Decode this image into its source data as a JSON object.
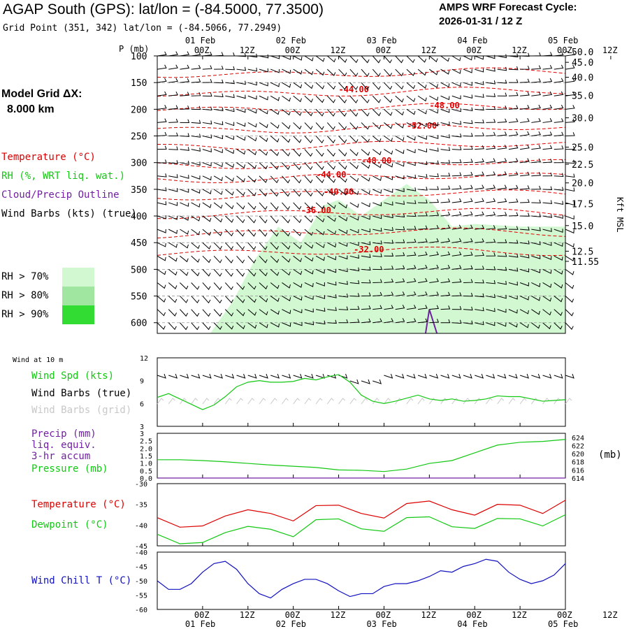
{
  "header": {
    "title": "AGAP South (GPS):  lat/lon = (-84.5000, 77.3500)",
    "grid_point": "Grid Point (351, 342) lat/lon = (-84.5066, 77.2949)",
    "cycle_label": "AMPS WRF Forecast Cycle:",
    "cycle_value": "2026-01-31 / 12  Z"
  },
  "model_grid": {
    "label": "Model Grid ΔX:",
    "value": "8.000 km"
  },
  "legend": {
    "temperature": "Temperature (°C)",
    "rh": "RH (%, WRT liq. wat.)",
    "cloud": "Cloud/Precip Outline",
    "wind_barbs": "Wind Barbs (kts) (true)",
    "rh_levels": [
      {
        "label": "RH > 70%",
        "color": "#d2f8d2"
      },
      {
        "label": "RH > 80%",
        "color": "#a0e6a0"
      },
      {
        "label": "RH > 90%",
        "color": "#32dc32"
      }
    ]
  },
  "colors": {
    "temperature": "#dd0000",
    "green": "#12c812",
    "purple": "#7020a0",
    "gray": "#c8c8c8",
    "blue": "#1010c0"
  },
  "chart_data": [
    {
      "type": "heatmap",
      "title": "Time-height cross section",
      "ylabel": "P (mb)",
      "y2label": "Kft MSL",
      "x_ticks": [
        "00Z",
        "12Z",
        "00Z",
        "12Z",
        "00Z",
        "12Z",
        "00Z",
        "12Z",
        "00Z",
        "12Z"
      ],
      "x_dates": [
        "01 Feb",
        "02 Feb",
        "03 Feb",
        "04 Feb",
        "05 Feb"
      ],
      "forecast_hours": [
        12,
        120
      ],
      "p_ticks": [
        100,
        150,
        200,
        250,
        300,
        350,
        400,
        450,
        500,
        550,
        600
      ],
      "ylim": [
        100,
        620
      ],
      "kft_ticks": [
        "50.0",
        "45.0",
        "40.0",
        "35.0",
        "30.0",
        "25.0",
        "22.5",
        "20.0",
        "17.5",
        "15.0",
        "12.5",
        "11.55"
      ],
      "kft_pressures": [
        92,
        112,
        140,
        174,
        216,
        271,
        303,
        338,
        377,
        418,
        466,
        485
      ],
      "temp_labels": [
        {
          "label": "-44.00",
          "hour": 60,
          "p": 168
        },
        {
          "label": "-48.00",
          "hour": 84,
          "p": 198
        },
        {
          "label": "-52.00",
          "hour": 78,
          "p": 236
        },
        {
          "label": "-48.00",
          "hour": 66,
          "p": 302
        },
        {
          "label": "-44.00",
          "hour": 54,
          "p": 328
        },
        {
          "label": "-40.00",
          "hour": 56,
          "p": 360
        },
        {
          "label": "-36.00",
          "hour": 50,
          "p": 395
        },
        {
          "label": "-32.00",
          "hour": 64,
          "p": 468
        }
      ],
      "rh_region": {
        "hours": [
          26,
          32,
          38,
          44,
          50,
          56,
          60,
          66,
          70,
          78,
          84,
          90,
          96,
          108,
          120
        ],
        "top_p": [
          620,
          560,
          480,
          420,
          450,
          380,
          370,
          400,
          380,
          340,
          370,
          420,
          415,
          420,
          420
        ]
      },
      "cloud_outline": {
        "hours": [
          83,
          84,
          86
        ],
        "top_p": [
          620,
          575,
          620
        ]
      }
    },
    {
      "type": "line",
      "title": "Wind at 10 m",
      "ylabel": "Wind Spd (kts)",
      "labels": [
        "Wind Spd (kts)",
        "Wind Barbs (true)",
        "Wind Barbs (grid)"
      ],
      "ylim": [
        3,
        12
      ],
      "y_ticks": [
        3,
        6,
        9,
        12
      ],
      "x": [
        12,
        15,
        18,
        21,
        24,
        27,
        30,
        33,
        36,
        39,
        42,
        45,
        48,
        51,
        54,
        57,
        60,
        63,
        66,
        69,
        72,
        75,
        78,
        81,
        84,
        87,
        90,
        93,
        96,
        99,
        102,
        105,
        108,
        111,
        114,
        117,
        120
      ],
      "values": [
        6.8,
        7.3,
        6.6,
        5.9,
        5.2,
        5.8,
        6.9,
        8.2,
        8.8,
        9.0,
        8.8,
        8.8,
        8.9,
        9.3,
        9.1,
        9.5,
        9.8,
        8.8,
        7.1,
        6.3,
        6.0,
        6.3,
        6.7,
        7.1,
        6.6,
        6.4,
        6.6,
        6.3,
        6.4,
        6.6,
        7.0,
        6.9,
        6.9,
        6.6,
        6.3,
        6.4,
        6.5
      ]
    },
    {
      "type": "line",
      "labels": [
        "Precip (mm)",
        "liq. equiv.",
        "3-hr accum",
        "Pressure (mb)"
      ],
      "ylim": [
        0,
        3
      ],
      "y_ticks": [
        "0.0",
        "0.5",
        "1.0",
        "1.5",
        "2.0",
        "2.5",
        "3"
      ],
      "y2lim": [
        614,
        625
      ],
      "y2_ticks": [
        614,
        616,
        618,
        620,
        622,
        624
      ],
      "series": [
        {
          "name": "Pressure (mb)",
          "x": [
            12,
            18,
            24,
            30,
            36,
            42,
            48,
            54,
            60,
            66,
            72,
            78,
            84,
            90,
            96,
            102,
            108,
            114,
            120
          ],
          "values": [
            618.5,
            618.5,
            618.3,
            618.0,
            617.6,
            617.2,
            616.9,
            616.6,
            616.0,
            615.9,
            615.6,
            616.2,
            617.6,
            618.3,
            620.2,
            622.1,
            622.8,
            623.0,
            623.5
          ]
        },
        {
          "name": "Precip (mm)",
          "x": [
            12,
            120
          ],
          "values": [
            0,
            0
          ]
        }
      ]
    },
    {
      "type": "line",
      "labels": [
        "Temperature (°C)",
        "Dewpoint (°C)"
      ],
      "ylim": [
        -45,
        -30
      ],
      "y_ticks": [
        -45,
        -40,
        -35,
        -30
      ],
      "x": [
        12,
        18,
        24,
        30,
        36,
        42,
        48,
        54,
        60,
        66,
        72,
        78,
        84,
        90,
        96,
        102,
        108,
        114,
        120
      ],
      "series": [
        {
          "name": "Temperature (°C)",
          "values": [
            -38.2,
            -40.5,
            -40.2,
            -37.8,
            -36.3,
            -37.2,
            -39.0,
            -35.3,
            -35.2,
            -37.2,
            -38.3,
            -34.8,
            -34.2,
            -36.3,
            -37.6,
            -35.0,
            -35.2,
            -37.2,
            -34.0
          ]
        },
        {
          "name": "Dewpoint (°C)",
          "values": [
            -42.2,
            -44.5,
            -44.2,
            -41.8,
            -40.3,
            -41.0,
            -42.8,
            -38.7,
            -38.5,
            -40.9,
            -41.5,
            -38.2,
            -38.0,
            -40.4,
            -40.8,
            -38.4,
            -38.5,
            -40.2,
            -37.5
          ]
        }
      ]
    },
    {
      "type": "line",
      "labels": [
        "Wind Chill T (°C)"
      ],
      "ylim": [
        -60,
        -40
      ],
      "y_ticks": [
        -60,
        -55,
        -50,
        -45,
        -40
      ],
      "x": [
        12,
        15,
        18,
        21,
        24,
        27,
        30,
        33,
        36,
        39,
        42,
        45,
        48,
        51,
        54,
        57,
        60,
        63,
        66,
        69,
        72,
        75,
        78,
        81,
        84,
        87,
        90,
        93,
        96,
        99,
        102,
        105,
        108,
        111,
        114,
        117,
        120
      ],
      "values": [
        -50,
        -53,
        -53,
        -51,
        -47,
        -44,
        -43.2,
        -46,
        -51,
        -54.5,
        -56,
        -53,
        -51,
        -49.5,
        -49.5,
        -51,
        -53.5,
        -55.5,
        -54.5,
        -54.5,
        -52,
        -51,
        -51,
        -50,
        -48.5,
        -46.5,
        -47,
        -45,
        -44,
        -42.5,
        -43.2,
        -47,
        -49.5,
        -51,
        -50,
        -48,
        -44
      ]
    }
  ],
  "bottom_axis": {
    "ticks": [
      "00Z",
      "12Z",
      "00Z",
      "12Z",
      "00Z",
      "12Z",
      "00Z",
      "12Z",
      "00Z",
      "12Z"
    ],
    "dates": [
      "01 Feb",
      "02 Feb",
      "03 Feb",
      "04 Feb",
      "05 Feb"
    ]
  },
  "panel2_header": "Wind at 10 m",
  "pressure_unit": "(mb)"
}
